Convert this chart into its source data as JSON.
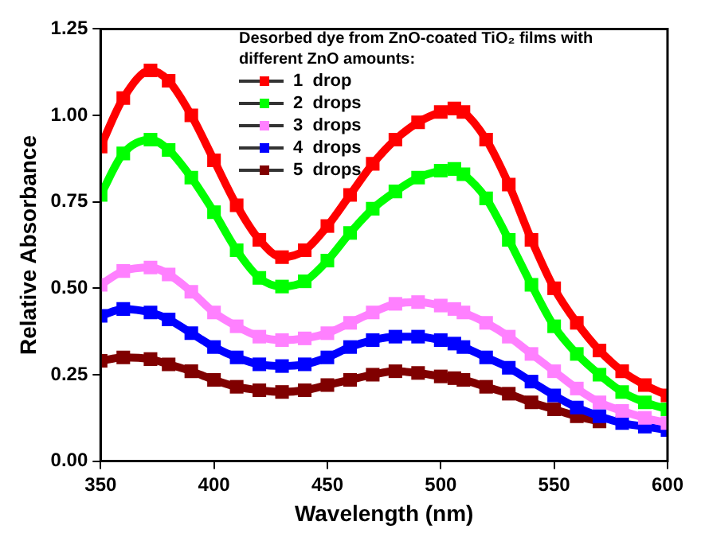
{
  "chart_data": {
    "type": "line",
    "xlabel": "Wavelength (nm)",
    "ylabel": "Relative Absorbance",
    "legend_title": "Desorbed dye from ZnO-coated TiO₂ films with different ZnO amounts:",
    "legend": "top",
    "marker": "square",
    "line_style": "solid",
    "grid": false,
    "xlim": [
      350,
      600
    ],
    "xticks": [
      350,
      400,
      450,
      500,
      550,
      600
    ],
    "ylim": [
      0,
      1.25
    ],
    "yticks": [
      {
        "value": 0,
        "label": "0.00"
      },
      {
        "value": 0.25,
        "label": "0.25"
      },
      {
        "value": 0.5,
        "label": "0.50"
      },
      {
        "value": 0.75,
        "label": "0.75"
      },
      {
        "value": 1,
        "label": "1.00"
      },
      {
        "value": 1.25,
        "label": "1.25"
      }
    ],
    "x": [
      350,
      360,
      372,
      380,
      390,
      400,
      410,
      420,
      430,
      440,
      450,
      460,
      470,
      480,
      490,
      500,
      506,
      510,
      520,
      530,
      540,
      550,
      560,
      570,
      580,
      590,
      600
    ],
    "series": [
      {
        "name": "1  drop",
        "color": "#ff0000",
        "values": [
          0.91,
          1.05,
          1.13,
          1.1,
          1.0,
          0.87,
          0.74,
          0.64,
          0.59,
          0.61,
          0.68,
          0.77,
          0.86,
          0.93,
          0.98,
          1.01,
          1.02,
          1.01,
          0.93,
          0.8,
          0.64,
          0.5,
          0.4,
          0.32,
          0.26,
          0.22,
          0.19
        ]
      },
      {
        "name": "2  drops",
        "color": "#00ff00",
        "values": [
          0.77,
          0.89,
          0.93,
          0.9,
          0.82,
          0.72,
          0.61,
          0.53,
          0.505,
          0.52,
          0.58,
          0.66,
          0.73,
          0.78,
          0.82,
          0.84,
          0.845,
          0.83,
          0.76,
          0.64,
          0.51,
          0.39,
          0.31,
          0.25,
          0.2,
          0.17,
          0.15
        ]
      },
      {
        "name": "3  drops",
        "color": "#ff80ff",
        "values": [
          0.51,
          0.55,
          0.56,
          0.54,
          0.49,
          0.43,
          0.39,
          0.36,
          0.35,
          0.355,
          0.37,
          0.4,
          0.43,
          0.455,
          0.46,
          0.45,
          0.44,
          0.43,
          0.4,
          0.36,
          0.31,
          0.26,
          0.21,
          0.17,
          0.145,
          0.125,
          0.11
        ]
      },
      {
        "name": "4  drops",
        "color": "#0000ff",
        "values": [
          0.42,
          0.44,
          0.43,
          0.41,
          0.37,
          0.33,
          0.3,
          0.28,
          0.275,
          0.28,
          0.3,
          0.33,
          0.35,
          0.36,
          0.36,
          0.35,
          0.34,
          0.33,
          0.3,
          0.27,
          0.23,
          0.19,
          0.155,
          0.13,
          0.11,
          0.1,
          0.09
        ]
      },
      {
        "name": "5  drops",
        "color": "#800000",
        "values": [
          0.29,
          0.3,
          0.295,
          0.28,
          0.26,
          0.235,
          0.215,
          0.205,
          0.2,
          0.205,
          0.22,
          0.235,
          0.25,
          0.26,
          0.255,
          0.245,
          0.24,
          0.235,
          0.215,
          0.195,
          0.17,
          0.15,
          0.13,
          0.115,
          null,
          null,
          null
        ]
      }
    ]
  }
}
